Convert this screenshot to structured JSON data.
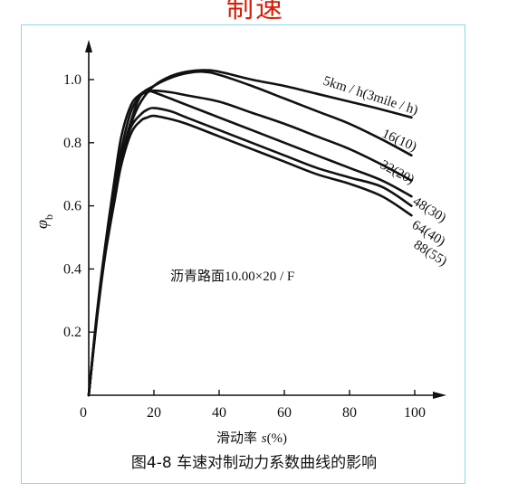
{
  "header_fragment": "制速",
  "caption": "图4-8   车速对制动力系数曲线的影响",
  "chart_data": {
    "type": "line",
    "title": "",
    "xlabel_prefix": "滑动率 ",
    "xlabel_var": "s",
    "xlabel_unit": "(%)",
    "ylabel_main": "φ",
    "ylabel_sub": "b",
    "annotation": "沥青路面10.00×20 / F",
    "xlim": [
      0,
      100
    ],
    "ylim": [
      0,
      1.0
    ],
    "x_ticks": [
      "0",
      "20",
      "40",
      "60",
      "80",
      "100"
    ],
    "y_ticks": [
      "0.2",
      "0.4",
      "0.6",
      "0.8",
      "1.0"
    ],
    "series": [
      {
        "name": "5km / h(3mile / h)",
        "x": [
          0,
          2.5,
          5,
          8,
          10,
          13,
          16,
          20,
          25,
          30,
          35,
          40,
          50,
          60,
          70,
          80,
          90,
          99
        ],
        "y": [
          0,
          0.25,
          0.45,
          0.63,
          0.74,
          0.86,
          0.93,
          0.98,
          1.01,
          1.025,
          1.03,
          1.025,
          1.0,
          0.98,
          0.955,
          0.93,
          0.905,
          0.88
        ]
      },
      {
        "name": "16(10)",
        "x": [
          0,
          2.5,
          5,
          8,
          10,
          13,
          16,
          20,
          25,
          30,
          35,
          40,
          50,
          60,
          70,
          80,
          90,
          99
        ],
        "y": [
          0,
          0.25,
          0.45,
          0.63,
          0.75,
          0.87,
          0.95,
          0.98,
          1.005,
          1.02,
          1.025,
          1.015,
          0.98,
          0.94,
          0.9,
          0.86,
          0.81,
          0.76
        ]
      },
      {
        "name": "32(20)",
        "x": [
          0,
          2.5,
          5,
          8,
          10,
          13,
          16,
          18,
          20,
          25,
          30,
          40,
          50,
          60,
          70,
          80,
          90,
          99
        ],
        "y": [
          0,
          0.25,
          0.46,
          0.66,
          0.78,
          0.9,
          0.95,
          0.96,
          0.965,
          0.96,
          0.95,
          0.93,
          0.895,
          0.86,
          0.82,
          0.78,
          0.73,
          0.68
        ]
      },
      {
        "name": "48(30)",
        "x": [
          0,
          2.5,
          5,
          8,
          10,
          13,
          16,
          18,
          20,
          25,
          30,
          40,
          50,
          60,
          70,
          80,
          90,
          99
        ],
        "y": [
          0,
          0.26,
          0.47,
          0.69,
          0.82,
          0.92,
          0.955,
          0.965,
          0.96,
          0.94,
          0.92,
          0.88,
          0.84,
          0.8,
          0.76,
          0.72,
          0.68,
          0.63
        ]
      },
      {
        "name": "64(40)",
        "x": [
          0,
          2.5,
          5,
          8,
          10,
          13,
          16,
          18,
          20,
          25,
          30,
          40,
          50,
          60,
          70,
          80,
          90,
          99
        ],
        "y": [
          0,
          0.25,
          0.45,
          0.64,
          0.75,
          0.85,
          0.89,
          0.905,
          0.91,
          0.9,
          0.88,
          0.84,
          0.8,
          0.76,
          0.72,
          0.69,
          0.66,
          0.6
        ]
      },
      {
        "name": "88(55)",
        "x": [
          0,
          2.5,
          5,
          8,
          10,
          13,
          16,
          18,
          20,
          25,
          30,
          40,
          50,
          60,
          70,
          80,
          90,
          99
        ],
        "y": [
          0,
          0.24,
          0.44,
          0.62,
          0.73,
          0.83,
          0.87,
          0.88,
          0.885,
          0.875,
          0.86,
          0.82,
          0.78,
          0.74,
          0.7,
          0.67,
          0.63,
          0.57
        ]
      }
    ],
    "grid": false,
    "line_color": "#111111"
  }
}
